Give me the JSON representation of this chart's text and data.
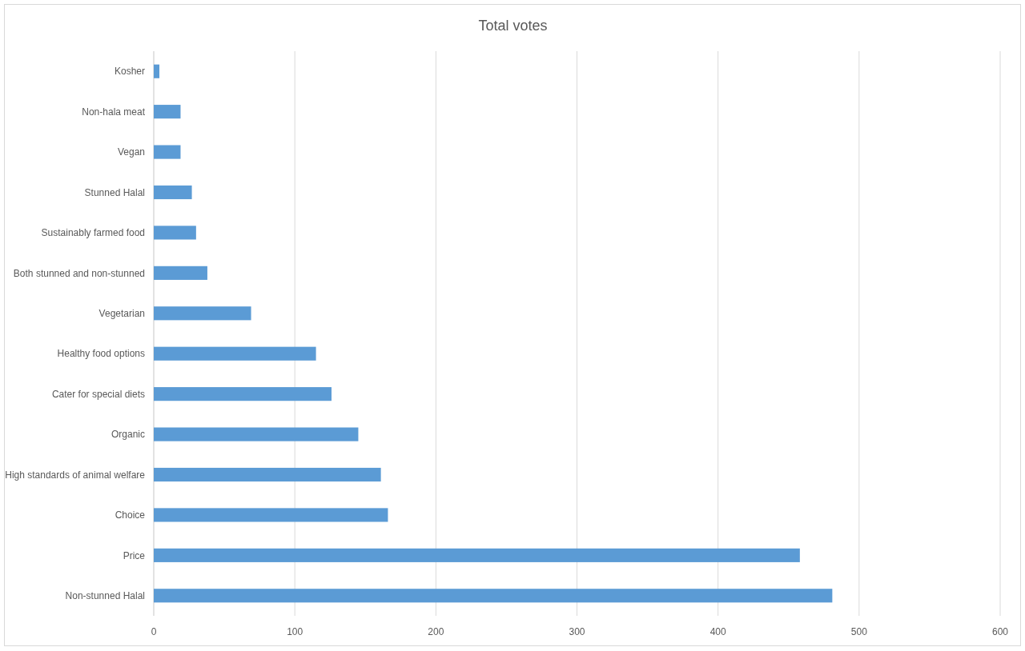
{
  "chart_data": {
    "type": "bar",
    "orientation": "horizontal",
    "title": "Total votes",
    "categories": [
      "Kosher",
      "Non-hala meat",
      "Vegan",
      "Stunned Halal",
      "Sustainably farmed food",
      "Both stunned and non-stunned",
      "Vegetarian",
      "Healthy food options",
      "Cater for special diets",
      "Organic",
      "High standards of animal welfare",
      "Choice",
      "Price",
      "Non-stunned Halal"
    ],
    "values": [
      4,
      19,
      19,
      27,
      30,
      38,
      69,
      115,
      126,
      145,
      161,
      166,
      458,
      481
    ],
    "color": "#5b9bd5",
    "xlim": [
      0,
      600
    ],
    "xticks": [
      0,
      100,
      200,
      300,
      400,
      500,
      600
    ],
    "grid": "x"
  }
}
